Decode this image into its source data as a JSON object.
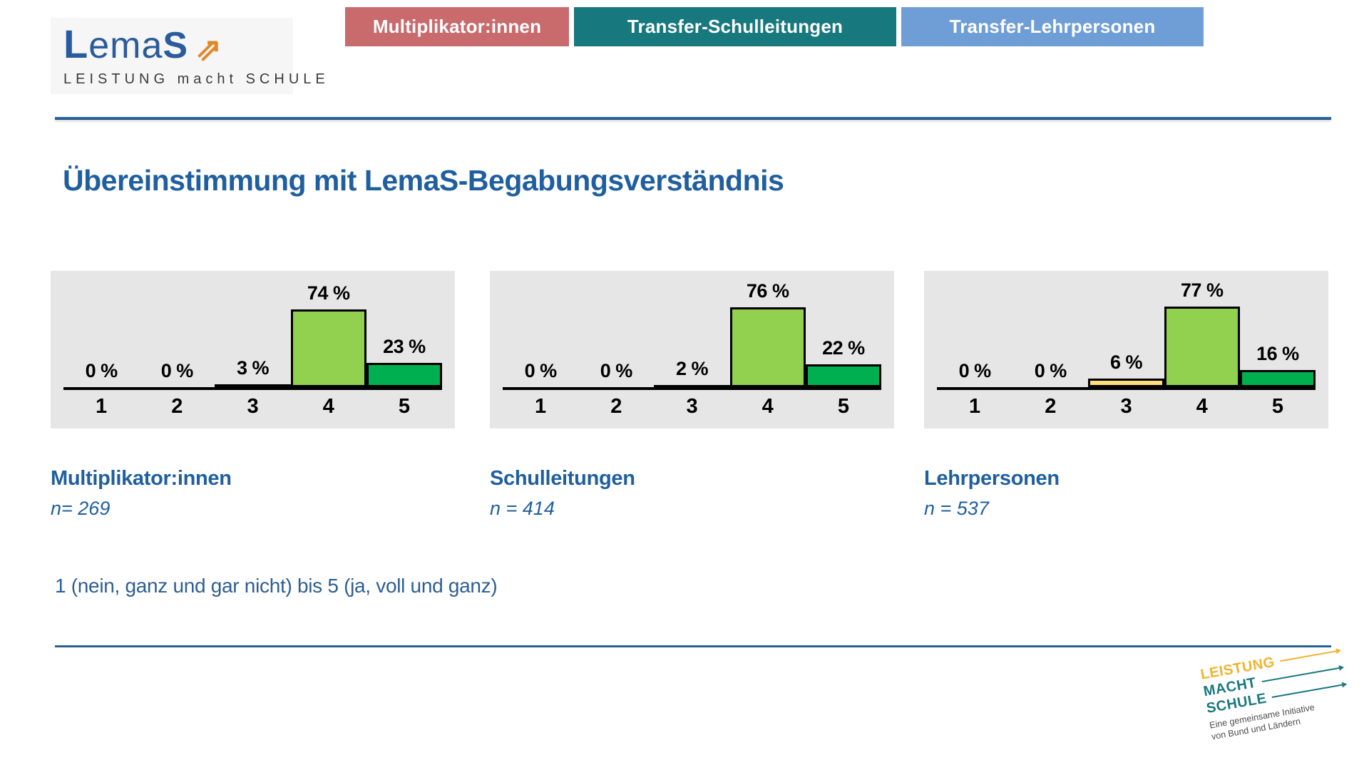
{
  "header": {
    "logo": {
      "part_l": "L",
      "part_mid": "ema",
      "part_s": "S",
      "arrow_icon": "up-right-arrow",
      "subtitle": "LEISTUNG macht SCHULE",
      "text_color": "#2a5b9c",
      "arrow_color": "#e0892b"
    },
    "tabs": [
      {
        "label": "Multiplikator:innen",
        "color": "#c96a6d"
      },
      {
        "label": "Transfer-Schulleitungen",
        "color": "#17787e"
      },
      {
        "label": "Transfer-Lehrpersonen",
        "color": "#6f9ed7"
      }
    ]
  },
  "title": "Übereinstimmung mit LemaS-Begabungsverständnis",
  "footnote": "1 (nein, ganz und gar nicht) bis 5 (ja, voll und ganz)",
  "chart_data": [
    {
      "type": "bar",
      "title": "Multiplikator:innen",
      "n_label": "n= 269",
      "categories": [
        "1",
        "2",
        "3",
        "4",
        "5"
      ],
      "values": [
        0,
        0,
        3,
        74,
        23
      ],
      "value_labels": [
        "0 %",
        "0 %",
        "3 %",
        "74 %",
        "23 %"
      ],
      "bar_colors": [
        "#000000",
        "#000000",
        "#000000",
        "#92d050",
        "#00b050"
      ],
      "ylim": [
        0,
        100
      ],
      "xlabel": "",
      "ylabel": "",
      "grid": false,
      "legend": false,
      "panel_background": "#e7e6e6"
    },
    {
      "type": "bar",
      "title": "Schulleitungen",
      "n_label": "n = 414",
      "categories": [
        "1",
        "2",
        "3",
        "4",
        "5"
      ],
      "values": [
        0,
        0,
        2,
        76,
        22
      ],
      "value_labels": [
        "0 %",
        "0 %",
        "2 %",
        "76 %",
        "22 %"
      ],
      "bar_colors": [
        "#000000",
        "#000000",
        "#000000",
        "#92d050",
        "#00b050"
      ],
      "ylim": [
        0,
        100
      ],
      "xlabel": "",
      "ylabel": "",
      "grid": false,
      "legend": false,
      "panel_background": "#e7e6e6"
    },
    {
      "type": "bar",
      "title": "Lehrpersonen",
      "n_label": "n = 537",
      "categories": [
        "1",
        "2",
        "3",
        "4",
        "5"
      ],
      "values": [
        0,
        0,
        6,
        77,
        16
      ],
      "value_labels": [
        "0 %",
        "0 %",
        "6 %",
        "77 %",
        "16 %"
      ],
      "bar_colors": [
        "#000000",
        "#000000",
        "#ffdd7d",
        "#92d050",
        "#00b050"
      ],
      "ylim": [
        0,
        100
      ],
      "xlabel": "",
      "ylabel": "",
      "grid": false,
      "legend": false,
      "panel_background": "#e7e6e6"
    }
  ],
  "footer_logo": {
    "lines": [
      {
        "text": "LEISTUNG",
        "color": "#f2b32c"
      },
      {
        "text": "MACHT",
        "color": "#1a7880"
      },
      {
        "text": "SCHULE",
        "color": "#1a7880"
      }
    ],
    "caption_line1": "Eine gemeinsame Initiative",
    "caption_line2": "von Bund und Ländern"
  },
  "style_colors": {
    "title_blue": "#1f5f9f",
    "divider_blue": "#1f5e9e",
    "bar_light_green": "#92d050",
    "bar_dark_green": "#00b050",
    "bar_yellow": "#ffdd7d"
  }
}
